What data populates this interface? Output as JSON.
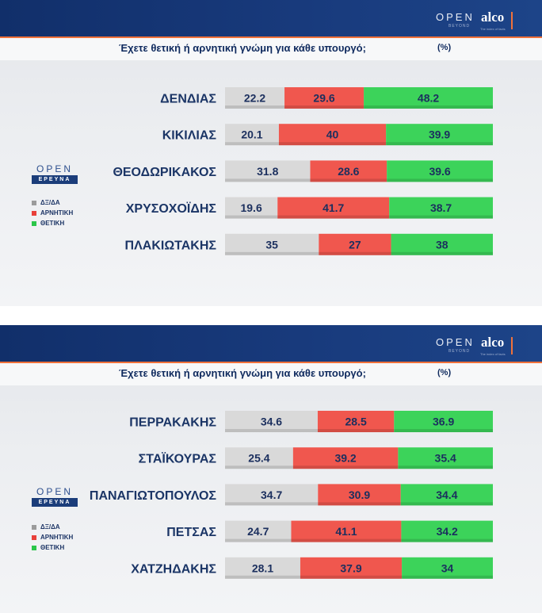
{
  "brand": {
    "open": "OPEN",
    "beyond": "BEYOND",
    "alco": "alco",
    "alco_tagline": "The index of facts"
  },
  "question": "Έχετε θετική ή αρνητική γνώμη για κάθε υπουργό;",
  "unit": "(%)",
  "logo": {
    "open": "OPEN",
    "erevna": "ΕΡΕΥΝΑ"
  },
  "legend": [
    {
      "label": "ΔΞ/ΔΑ",
      "color": "#9b9b9b"
    },
    {
      "label": "ΑΡΝΗΤΙΚΗ",
      "color": "#e8403a"
    },
    {
      "label": "ΘΕΤΙΚΗ",
      "color": "#2bc64a"
    }
  ],
  "colors": {
    "neutral": "#d9d9d9",
    "negative": "#f0574e",
    "positive": "#3cd35a",
    "label": "#1b3566",
    "value": "#1b2f5e"
  },
  "chart_data": [
    {
      "type": "bar",
      "orientation": "horizontal",
      "stacked": true,
      "title": "Έχετε θετική ή αρνητική γνώμη για κάθε υπουργό;",
      "unit": "(%)",
      "categories": [
        "ΔΕΝΔΙΑΣ",
        "ΚΙΚΙΛΙΑΣ",
        "ΘΕΟΔΩΡΙΚΑΚΟΣ",
        "ΧΡΥΣΟΧΟΪΔΗΣ",
        "ΠΛΑΚΙΩΤΑΚΗΣ"
      ],
      "series": [
        {
          "name": "ΔΞ/ΔΑ",
          "values": [
            22.2,
            20.1,
            31.8,
            19.6,
            35
          ]
        },
        {
          "name": "ΑΡΝΗΤΙΚΗ",
          "values": [
            29.6,
            40,
            28.6,
            41.7,
            27
          ]
        },
        {
          "name": "ΘΕΤΙΚΗ",
          "values": [
            48.2,
            39.9,
            39.6,
            38.7,
            38
          ]
        }
      ],
      "xlim": [
        0,
        100
      ],
      "legend_position": "left"
    },
    {
      "type": "bar",
      "orientation": "horizontal",
      "stacked": true,
      "title": "Έχετε θετική ή αρνητική γνώμη για κάθε υπουργό;",
      "unit": "(%)",
      "categories": [
        "ΠΕΡΡΑΚΑΚΗΣ",
        "ΣΤΑΪΚΟΥΡΑΣ",
        "ΠΑΝΑΓΙΩΤΟΠΟΥΛΟΣ",
        "ΠΕΤΣΑΣ",
        "ΧΑΤΖΗΔΑΚΗΣ"
      ],
      "series": [
        {
          "name": "ΔΞ/ΔΑ",
          "values": [
            34.6,
            25.4,
            34.7,
            24.7,
            28.1
          ]
        },
        {
          "name": "ΑΡΝΗΤΙΚΗ",
          "values": [
            28.5,
            39.2,
            30.9,
            41.1,
            37.9
          ]
        },
        {
          "name": "ΘΕΤΙΚΗ",
          "values": [
            36.9,
            35.4,
            34.4,
            34.2,
            34
          ]
        }
      ],
      "xlim": [
        0,
        100
      ],
      "legend_position": "left"
    }
  ]
}
